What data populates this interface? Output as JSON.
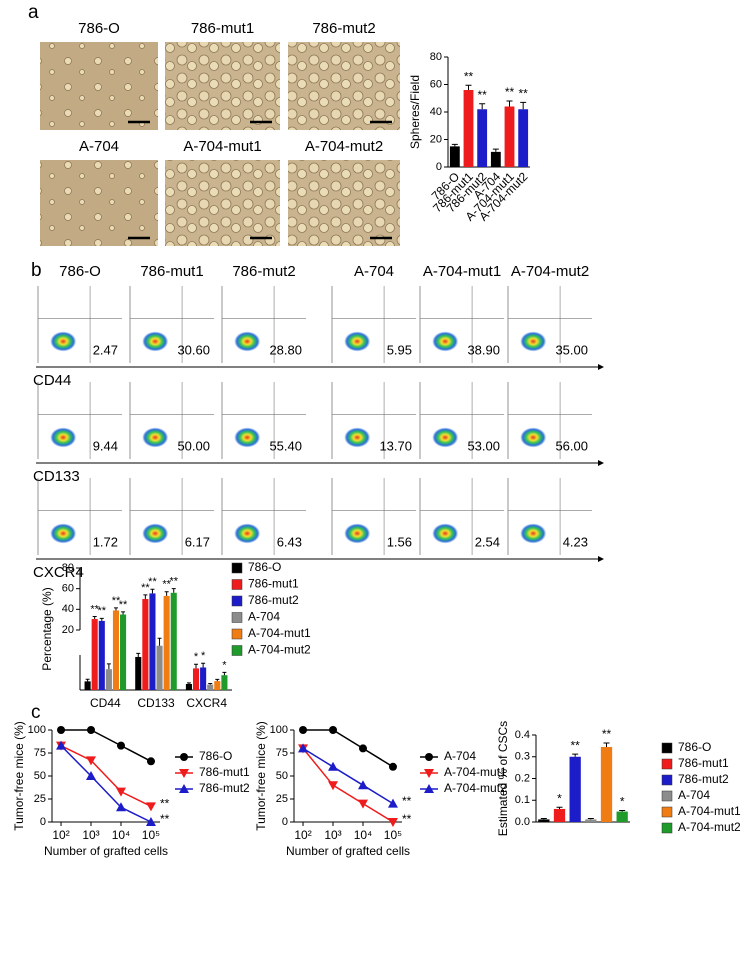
{
  "panel_labels": [
    "a",
    "b",
    "c"
  ],
  "panel_a": {
    "images": [
      "786-O",
      "786-mut1",
      "786-mut2",
      "A-704",
      "A-704-mut1",
      "A-704-mut2"
    ]
  },
  "panel_b": {
    "columns": [
      "786-O",
      "786-mut1",
      "786-mut2",
      "A-704",
      "A-704-mut1",
      "A-704-mut2"
    ],
    "rows": [
      {
        "marker": "CD44",
        "values": [
          "2.47",
          "30.60",
          "28.80",
          "5.95",
          "38.90",
          "35.00"
        ]
      },
      {
        "marker": "CD133",
        "values": [
          "9.44",
          "50.00",
          "55.40",
          "13.70",
          "53.00",
          "56.00"
        ]
      },
      {
        "marker": "CXCR4",
        "values": [
          "1.72",
          "6.17",
          "6.43",
          "1.56",
          "2.54",
          "4.23"
        ]
      }
    ]
  },
  "chart_data": [
    {
      "type": "bar",
      "ylabel": "Spheres/Field",
      "category_axis": "rotated",
      "categories": [
        "786-O",
        "786-mut1",
        "786-mut2",
        "A-704",
        "A-704-mut1",
        "A-704-mut2"
      ],
      "values": [
        15,
        56,
        42,
        11,
        44,
        42
      ],
      "errors": [
        1.5,
        3.5,
        4,
        2,
        4,
        5
      ],
      "annotations": [
        null,
        "**",
        "**",
        null,
        "**",
        "**"
      ],
      "colors": [
        "#000000",
        "#ee1c1c",
        "#1c1cc8",
        "#000000",
        "#ee1c1c",
        "#1c1cc8"
      ],
      "ylim": [
        0,
        80
      ],
      "yticks": [
        0,
        20,
        40,
        60,
        80
      ]
    },
    {
      "type": "bar",
      "ylabel": "Percentage (%)",
      "category_axis": "plain",
      "legend": true,
      "categories": [
        "CD44",
        "CD133",
        "CXCR4"
      ],
      "ybreak": [
        10,
        20
      ],
      "ylim": [
        0,
        80
      ],
      "yticks": [
        20,
        40,
        60,
        80
      ],
      "series": [
        {
          "name": "786-O",
          "color": "#000000",
          "values": [
            2.47,
            9.44,
            1.72
          ],
          "errors": [
            0.6,
            1.2,
            0.3
          ],
          "annotations": [
            null,
            null,
            null
          ]
        },
        {
          "name": "786-mut1",
          "color": "#ee1c1c",
          "values": [
            30.6,
            50,
            6.17
          ],
          "errors": [
            2.5,
            4,
            1.2
          ],
          "annotations": [
            "**",
            "**",
            "*"
          ]
        },
        {
          "name": "786-mut2",
          "color": "#1c1cc8",
          "values": [
            28.8,
            55.4,
            6.43
          ],
          "errors": [
            2.5,
            4,
            1.2
          ],
          "annotations": [
            "**",
            "**",
            "*"
          ]
        },
        {
          "name": "A-704",
          "color": "#8c8c8c",
          "values": [
            5.95,
            13.7,
            1.56
          ],
          "errors": [
            1.5,
            3,
            0.3
          ],
          "annotations": [
            null,
            null,
            null
          ]
        },
        {
          "name": "A-704-mut1",
          "color": "#f07c14",
          "values": [
            38.9,
            53,
            2.54
          ],
          "errors": [
            2.5,
            4,
            0.5
          ],
          "annotations": [
            "**",
            "**",
            null
          ]
        },
        {
          "name": "A-704-mut2",
          "color": "#1e9b2a",
          "values": [
            35,
            56,
            4.23
          ],
          "errors": [
            2.5,
            4,
            0.8
          ],
          "annotations": [
            "**",
            "**",
            "*"
          ]
        }
      ]
    },
    {
      "type": "line",
      "xscale": "log",
      "ylabel": "Tumor-free mice (%)",
      "xlabel": "Number of grafted cells",
      "x": [
        100,
        1000,
        10000,
        100000
      ],
      "xlim": [
        50,
        200000
      ],
      "xticks": [
        {
          "value": 100,
          "label": "10²"
        },
        {
          "value": 1000,
          "label": "10³"
        },
        {
          "value": 10000,
          "label": "10⁴"
        },
        {
          "value": 100000,
          "label": "10⁵"
        }
      ],
      "ylim": [
        0,
        100
      ],
      "yticks": [
        0,
        25,
        50,
        75,
        100
      ],
      "series": [
        {
          "name": "786-O",
          "color": "#000000",
          "marker": "circle",
          "values": [
            100,
            100,
            83,
            66
          ]
        },
        {
          "name": "786-mut1",
          "color": "#ee1c1c",
          "marker": "triangle-down",
          "values": [
            83,
            67,
            33,
            17
          ],
          "annotation": "**"
        },
        {
          "name": "786-mut2",
          "color": "#1c1cc8",
          "marker": "triangle-up",
          "values": [
            83,
            50,
            16,
            0
          ],
          "annotation": "**"
        }
      ]
    },
    {
      "type": "line",
      "xscale": "log",
      "ylabel": "Tumor-free mice (%)",
      "xlabel": "Number of grafted cells",
      "x": [
        100,
        1000,
        10000,
        100000
      ],
      "xlim": [
        50,
        200000
      ],
      "xticks": [
        {
          "value": 100,
          "label": "10²"
        },
        {
          "value": 1000,
          "label": "10³"
        },
        {
          "value": 10000,
          "label": "10⁴"
        },
        {
          "value": 100000,
          "label": "10⁵"
        }
      ],
      "ylim": [
        0,
        100
      ],
      "yticks": [
        0,
        25,
        50,
        75,
        100
      ],
      "series": [
        {
          "name": "A-704",
          "color": "#000000",
          "marker": "circle",
          "values": [
            100,
            100,
            80,
            60
          ]
        },
        {
          "name": "A-704-mut1",
          "color": "#ee1c1c",
          "marker": "triangle-down",
          "values": [
            80,
            40,
            20,
            0
          ],
          "annotation": "**"
        },
        {
          "name": "A-704-mut2",
          "color": "#1c1cc8",
          "marker": "triangle-up",
          "values": [
            80,
            60,
            40,
            20
          ],
          "annotation": "**"
        }
      ]
    },
    {
      "type": "bar",
      "ylabel": "Estimated % of CSCs",
      "category_axis": "legend",
      "categories": [
        "786-O",
        "786-mut1",
        "786-mut2",
        "A-704",
        "A-704-mut1",
        "A-704-mut2"
      ],
      "values": [
        0.012,
        0.06,
        0.3,
        0.012,
        0.345,
        0.048
      ],
      "errors": [
        0.004,
        0.008,
        0.012,
        0.004,
        0.018,
        0.005
      ],
      "annotations": [
        null,
        "*",
        "**",
        null,
        "**",
        "*"
      ],
      "colors": [
        "#000000",
        "#ee1c1c",
        "#1c1cc8",
        "#8c8c8c",
        "#f07c14",
        "#1e9b2a"
      ],
      "ylim": [
        0,
        0.4
      ],
      "yticks": [
        {
          "value": 0,
          "label": "0.0"
        },
        0.1,
        0.2,
        0.3,
        0.4
      ]
    }
  ]
}
